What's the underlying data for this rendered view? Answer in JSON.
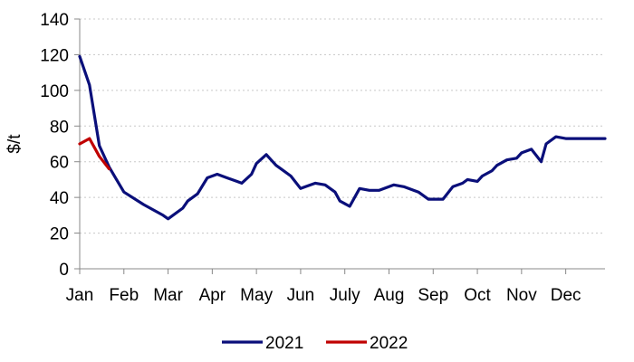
{
  "chart_data": {
    "type": "line",
    "ylabel": "$/t",
    "ylim": [
      0,
      140
    ],
    "yticks": [
      0,
      20,
      40,
      60,
      80,
      100,
      120,
      140
    ],
    "grid": "horizontal dotted",
    "legend_position": "bottom",
    "months": [
      "Jan",
      "Feb",
      "Mar",
      "Apr",
      "May",
      "Jun",
      "July",
      "Aug",
      "Sep",
      "Oct",
      "Nov",
      "Dec"
    ],
    "x_unit": "week",
    "series": [
      {
        "name": "2021",
        "color": "#0a0f7a",
        "x": [
          1,
          3,
          5,
          7,
          10,
          14,
          18,
          19,
          22,
          23,
          25,
          27,
          29,
          31,
          33,
          34,
          36,
          37,
          39,
          41,
          42,
          44,
          46,
          47,
          49,
          51,
          53,
          54,
          56,
          58,
          60,
          62,
          64,
          65,
          67,
          70,
          72,
          75,
          77,
          79,
          80,
          82,
          83,
          85,
          86,
          88,
          90,
          91,
          93,
          95,
          96,
          98,
          100,
          102,
          104,
          106,
          108
        ],
        "y": [
          119,
          103,
          69,
          57,
          43,
          36,
          30,
          28,
          34,
          38,
          42,
          51,
          53,
          51,
          49,
          48,
          53,
          59,
          64,
          58,
          56,
          52,
          45,
          46,
          48,
          47,
          43,
          38,
          35,
          45,
          44,
          44,
          46,
          47,
          46,
          43,
          39,
          39,
          46,
          48,
          50,
          49,
          52,
          55,
          58,
          61,
          62,
          65,
          67,
          60,
          70,
          74,
          73,
          73,
          73,
          73,
          73
        ]
      },
      {
        "name": "2022",
        "color": "#c00000",
        "x": [
          1,
          3,
          5,
          7
        ],
        "y": [
          70,
          73,
          63,
          56
        ]
      }
    ]
  }
}
